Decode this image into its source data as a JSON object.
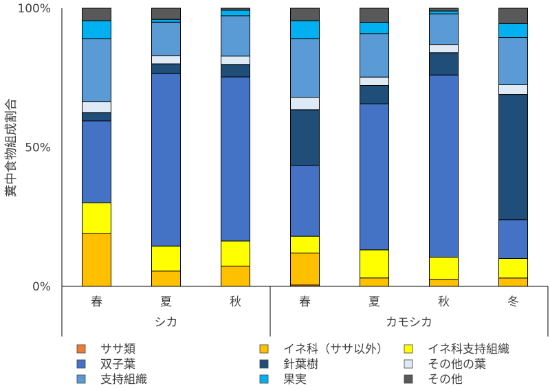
{
  "chart_data": {
    "type": "bar",
    "stacked": true,
    "ylabel": "糞中食物組成割合",
    "yticks": [
      "0%",
      "50%",
      "100%"
    ],
    "ylim": [
      0,
      100
    ],
    "grid": false,
    "legend_position": "bottom",
    "groups": [
      {
        "name": "シカ",
        "categories": [
          "春",
          "夏",
          "秋"
        ]
      },
      {
        "name": "カモシカ",
        "categories": [
          "春",
          "夏",
          "秋",
          "冬"
        ]
      }
    ],
    "categories": [
      "春",
      "夏",
      "秋",
      "春",
      "夏",
      "秋",
      "冬"
    ],
    "series": [
      {
        "name": "ササ類",
        "color": "#ED7D31",
        "values": [
          0,
          0,
          0,
          0.5,
          0,
          0,
          0
        ]
      },
      {
        "name": "イネ科（ササ以外）",
        "color": "#FFC000",
        "values": [
          19,
          5.5,
          7.3,
          11.5,
          3,
          2.5,
          3
        ]
      },
      {
        "name": "イネ科支持組織",
        "color": "#FFFF00",
        "values": [
          11,
          9,
          9,
          6,
          10,
          8,
          7
        ]
      },
      {
        "name": "双子葉",
        "color": "#4472C4",
        "values": [
          29.5,
          62,
          59,
          25.5,
          52,
          65.5,
          14
        ]
      },
      {
        "name": "針葉樹",
        "color": "#1F4E79",
        "values": [
          3,
          3.5,
          4.5,
          20,
          6.5,
          8,
          45
        ]
      },
      {
        "name": "その他の葉",
        "color": "#DEEBF7",
        "values": [
          4,
          3,
          3,
          4.5,
          3,
          3,
          3.5
        ]
      },
      {
        "name": "支持組織",
        "color": "#5B9BD5",
        "values": [
          22.5,
          12,
          14.5,
          21,
          15.5,
          11,
          17
        ]
      },
      {
        "name": "果実",
        "color": "#00B0F0",
        "values": [
          6.5,
          1,
          2,
          6.5,
          4,
          1,
          5
        ]
      },
      {
        "name": "その他",
        "color": "#595959",
        "values": [
          4.5,
          4,
          0.7,
          4.5,
          5,
          1,
          5.5
        ]
      }
    ]
  }
}
